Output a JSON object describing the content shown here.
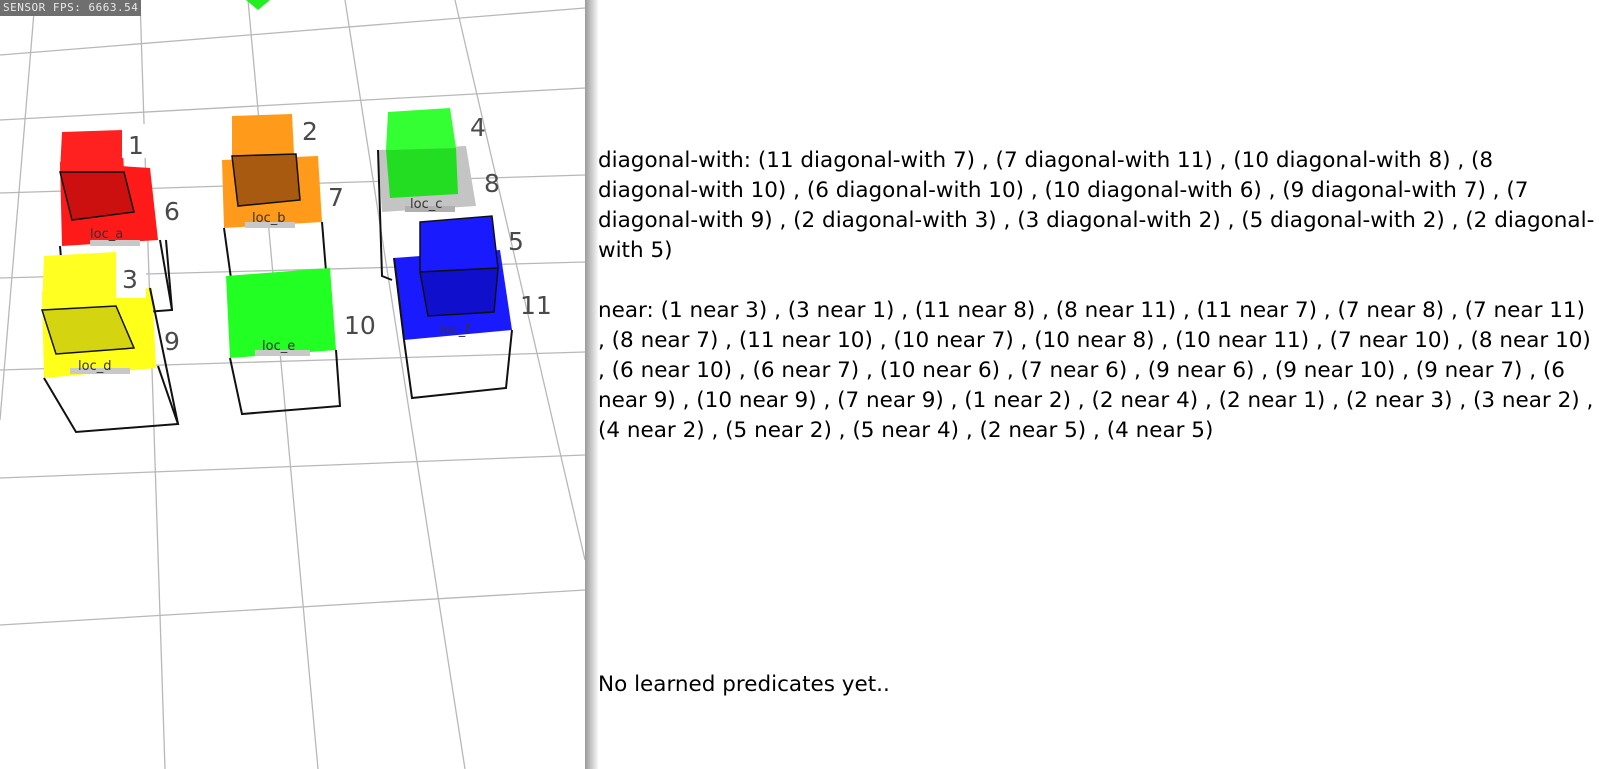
{
  "scene": {
    "fps_label": "SENSOR FPS: 6663.54",
    "locations": [
      "loc_a",
      "loc_b",
      "loc_c",
      "loc_d",
      "loc_e",
      "loc_f"
    ],
    "object_ids": [
      "1",
      "2",
      "3",
      "4",
      "5",
      "6",
      "7",
      "8",
      "9",
      "10",
      "11"
    ],
    "colors": {
      "red": "#ff1a1a",
      "orange": "#ff9a1a",
      "green": "#22ff22",
      "yellow": "#ffff1a",
      "blue": "#1a1aff",
      "grid": "#b8b8b8"
    }
  },
  "predicates": {
    "diagonal_with": "diagonal-with: (11 diagonal-with 7) , (7 diagonal-with 11) , (10 diagonal-with 8) , (8 diagonal-with 10) , (6 diagonal-with 10) , (10 diagonal-with 6) , (9 diagonal-with 7) , (7 diagonal-with 9) , (2 diagonal-with 3) , (3 diagonal-with 2) , (5 diagonal-with 2) , (2 diagonal-with 5)",
    "near": "near: (1 near 3) , (3 near 1) , (11 near 8) , (8 near 11) , (11 near 7) , (7 near 8) , (7 near 11) , (8 near 7) , (11 near 10) , (10 near 7) , (10 near 8) , (10 near 11) , (7 near 10) , (8 near 10) , (6 near 10) , (6 near 7) , (10 near 6) , (7 near 6) , (9 near 6) , (9 near 10) , (9 near 7) , (6 near 9) , (10 near 9) , (7 near 9) , (1 near 2) , (2 near 4) , (2 near 1) , (2 near 3) , (3 near 2) , (4 near 2) , (5 near 2) , (5 near 4) , (2 near 5) , (4 near 5)",
    "learned": "No learned predicates yet.."
  }
}
